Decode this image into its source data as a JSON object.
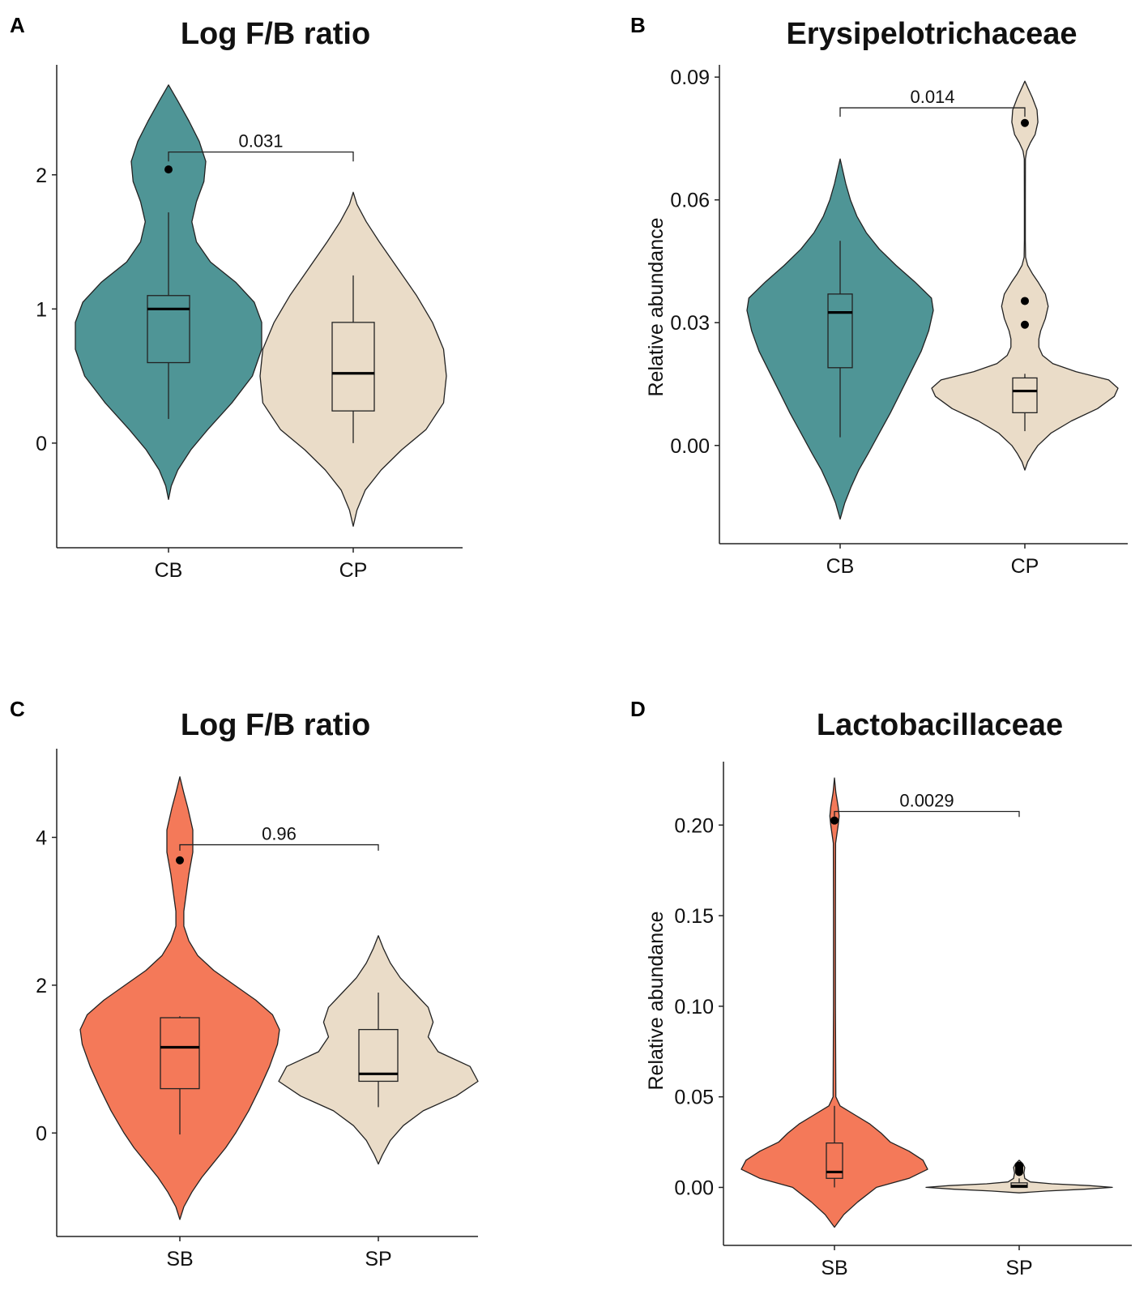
{
  "figure": {
    "colors": {
      "teal": "#4f9596",
      "beige": "#eadcc8",
      "coral": "#f47959",
      "stroke": "#222222"
    }
  },
  "chart_data": [
    {
      "panel": "A",
      "type": "violin",
      "title": "Log F/B ratio",
      "xlabel": "",
      "ylabel": "",
      "ylim": [
        -0.78,
        2.82
      ],
      "yticks": [
        0,
        1,
        2
      ],
      "ytick_labels": [
        "0",
        "1",
        "2"
      ],
      "categories": [
        "CB",
        "CP"
      ],
      "groups": [
        {
          "name": "CB",
          "color": "#4f9596",
          "violin": [
            [
              -0.42,
              0
            ],
            [
              -0.32,
              0.03
            ],
            [
              -0.2,
              0.1
            ],
            [
              -0.05,
              0.24
            ],
            [
              0.1,
              0.42
            ],
            [
              0.3,
              0.68
            ],
            [
              0.5,
              0.9
            ],
            [
              0.7,
              1.0
            ],
            [
              0.9,
              1.0
            ],
            [
              1.05,
              0.92
            ],
            [
              1.2,
              0.72
            ],
            [
              1.35,
              0.45
            ],
            [
              1.5,
              0.3
            ],
            [
              1.65,
              0.25
            ],
            [
              1.8,
              0.3
            ],
            [
              1.95,
              0.38
            ],
            [
              2.1,
              0.4
            ],
            [
              2.25,
              0.33
            ],
            [
              2.4,
              0.22
            ],
            [
              2.55,
              0.1
            ],
            [
              2.67,
              0
            ]
          ],
          "box": {
            "q1": 0.6,
            "median": 1.0,
            "q3": 1.1,
            "whisker_low": 0.18,
            "whisker_high": 1.72
          },
          "outliers": [
            2.04
          ]
        },
        {
          "name": "CP",
          "color": "#eadcc8",
          "violin": [
            [
              -0.62,
              0
            ],
            [
              -0.5,
              0.04
            ],
            [
              -0.35,
              0.13
            ],
            [
              -0.2,
              0.3
            ],
            [
              -0.05,
              0.52
            ],
            [
              0.1,
              0.78
            ],
            [
              0.3,
              0.97
            ],
            [
              0.5,
              1.0
            ],
            [
              0.7,
              0.97
            ],
            [
              0.9,
              0.85
            ],
            [
              1.1,
              0.68
            ],
            [
              1.3,
              0.48
            ],
            [
              1.5,
              0.28
            ],
            [
              1.65,
              0.14
            ],
            [
              1.78,
              0.04
            ],
            [
              1.87,
              0
            ]
          ],
          "box": {
            "q1": 0.24,
            "median": 0.52,
            "q3": 0.9,
            "whisker_low": 0.0,
            "whisker_high": 1.25
          },
          "outliers": []
        }
      ],
      "annotation": {
        "text": "0.031",
        "y": 2.17,
        "y_end_left": 2.1,
        "y_end_right": 2.1
      }
    },
    {
      "panel": "B",
      "type": "violin",
      "title": "Erysipelotrichaceae",
      "xlabel": "",
      "ylabel": "Relative abundance",
      "ylim": [
        -0.024,
        0.093
      ],
      "yticks": [
        0.0,
        0.03,
        0.06,
        0.09
      ],
      "ytick_labels": [
        "0.00",
        "0.03",
        "0.06",
        "0.09"
      ],
      "categories": [
        "CB",
        "CP"
      ],
      "groups": [
        {
          "name": "CB",
          "color": "#4f9596",
          "violin": [
            [
              -0.018,
              0
            ],
            [
              -0.014,
              0.05
            ],
            [
              -0.01,
              0.12
            ],
            [
              -0.006,
              0.2
            ],
            [
              -0.002,
              0.3
            ],
            [
              0.003,
              0.42
            ],
            [
              0.008,
              0.54
            ],
            [
              0.013,
              0.65
            ],
            [
              0.018,
              0.76
            ],
            [
              0.023,
              0.87
            ],
            [
              0.028,
              0.95
            ],
            [
              0.033,
              1.0
            ],
            [
              0.036,
              0.98
            ],
            [
              0.04,
              0.8
            ],
            [
              0.044,
              0.6
            ],
            [
              0.048,
              0.42
            ],
            [
              0.052,
              0.28
            ],
            [
              0.056,
              0.18
            ],
            [
              0.06,
              0.11
            ],
            [
              0.064,
              0.06
            ],
            [
              0.068,
              0.02
            ],
            [
              0.07,
              0
            ]
          ],
          "box": {
            "q1": 0.019,
            "median": 0.0325,
            "q3": 0.037,
            "whisker_low": 0.002,
            "whisker_high": 0.05
          },
          "outliers": []
        },
        {
          "name": "CP",
          "color": "#eadcc8",
          "violin": [
            [
              -0.006,
              0
            ],
            [
              -0.004,
              0.03
            ],
            [
              -0.002,
              0.08
            ],
            [
              0.0,
              0.14
            ],
            [
              0.003,
              0.28
            ],
            [
              0.006,
              0.5
            ],
            [
              0.009,
              0.78
            ],
            [
              0.012,
              0.96
            ],
            [
              0.014,
              1.0
            ],
            [
              0.016,
              0.9
            ],
            [
              0.018,
              0.55
            ],
            [
              0.02,
              0.3
            ],
            [
              0.022,
              0.19
            ],
            [
              0.024,
              0.15
            ],
            [
              0.026,
              0.15
            ],
            [
              0.028,
              0.17
            ],
            [
              0.031,
              0.22
            ],
            [
              0.034,
              0.25
            ],
            [
              0.037,
              0.22
            ],
            [
              0.04,
              0.14
            ],
            [
              0.042,
              0.08
            ],
            [
              0.044,
              0.03
            ],
            [
              0.046,
              0.008
            ],
            [
              0.05,
              0.005
            ],
            [
              0.06,
              0.005
            ],
            [
              0.07,
              0.006
            ],
            [
              0.072,
              0.02
            ],
            [
              0.074,
              0.06
            ],
            [
              0.076,
              0.11
            ],
            [
              0.079,
              0.14
            ],
            [
              0.082,
              0.13
            ],
            [
              0.085,
              0.08
            ],
            [
              0.087,
              0.04
            ],
            [
              0.089,
              0
            ]
          ],
          "box": {
            "q1": 0.008,
            "median": 0.0133,
            "q3": 0.0165,
            "whisker_low": 0.0035,
            "whisker_high": 0.0175
          },
          "outliers": [
            0.0295,
            0.0353,
            0.0788
          ]
        }
      ],
      "annotation": {
        "text": "0.014",
        "y": 0.0825,
        "y_end_left": 0.0803,
        "y_end_right": 0.0803
      }
    },
    {
      "panel": "C",
      "type": "violin",
      "title": "Log F/B ratio",
      "xlabel": "",
      "ylabel": "",
      "ylim": [
        -1.4,
        5.2
      ],
      "yticks": [
        0,
        2,
        4
      ],
      "ytick_labels": [
        "0",
        "2",
        "4"
      ],
      "categories": [
        "SB",
        "SP"
      ],
      "groups": [
        {
          "name": "SB",
          "color": "#f47959",
          "violin": [
            [
              -1.17,
              0
            ],
            [
              -1.0,
              0.04
            ],
            [
              -0.8,
              0.12
            ],
            [
              -0.6,
              0.22
            ],
            [
              -0.4,
              0.34
            ],
            [
              -0.2,
              0.46
            ],
            [
              0.0,
              0.56
            ],
            [
              0.3,
              0.69
            ],
            [
              0.6,
              0.8
            ],
            [
              0.9,
              0.9
            ],
            [
              1.2,
              0.98
            ],
            [
              1.4,
              1.0
            ],
            [
              1.6,
              0.93
            ],
            [
              1.8,
              0.76
            ],
            [
              2.0,
              0.55
            ],
            [
              2.2,
              0.34
            ],
            [
              2.4,
              0.18
            ],
            [
              2.6,
              0.09
            ],
            [
              2.8,
              0.04
            ],
            [
              3.0,
              0.04
            ],
            [
              3.2,
              0.06
            ],
            [
              3.5,
              0.09
            ],
            [
              3.8,
              0.13
            ],
            [
              4.1,
              0.13
            ],
            [
              4.4,
              0.08
            ],
            [
              4.6,
              0.04
            ],
            [
              4.82,
              0
            ]
          ],
          "box": {
            "q1": 0.6,
            "median": 1.16,
            "q3": 1.56,
            "whisker_low": -0.02,
            "whisker_high": 1.58
          },
          "outliers": [
            3.69
          ]
        },
        {
          "name": "SP",
          "color": "#eadcc8",
          "violin": [
            [
              -0.42,
              0
            ],
            [
              -0.3,
              0.04
            ],
            [
              -0.1,
              0.12
            ],
            [
              0.1,
              0.25
            ],
            [
              0.3,
              0.45
            ],
            [
              0.5,
              0.78
            ],
            [
              0.7,
              1.0
            ],
            [
              0.9,
              0.92
            ],
            [
              1.1,
              0.6
            ],
            [
              1.3,
              0.5
            ],
            [
              1.5,
              0.55
            ],
            [
              1.7,
              0.5
            ],
            [
              1.9,
              0.36
            ],
            [
              2.1,
              0.22
            ],
            [
              2.3,
              0.12
            ],
            [
              2.5,
              0.05
            ],
            [
              2.67,
              0
            ]
          ],
          "box": {
            "q1": 0.7,
            "median": 0.8,
            "q3": 1.4,
            "whisker_low": 0.35,
            "whisker_high": 1.9
          },
          "outliers": []
        }
      ],
      "annotation": {
        "text": "0.96",
        "y": 3.9,
        "y_end_left": 3.82,
        "y_end_right": 3.82
      }
    },
    {
      "panel": "D",
      "type": "violin",
      "title": "Lactobacillaceae",
      "xlabel": "",
      "ylabel": "Relative abundance",
      "ylim": [
        -0.032,
        0.235
      ],
      "yticks": [
        0.0,
        0.05,
        0.1,
        0.15,
        0.2
      ],
      "ytick_labels": [
        "0.00",
        "0.05",
        "0.10",
        "0.15",
        "0.20"
      ],
      "categories": [
        "SB",
        "SP"
      ],
      "groups": [
        {
          "name": "SB",
          "color": "#f47959",
          "violin": [
            [
              -0.022,
              0
            ],
            [
              -0.015,
              0.1
            ],
            [
              -0.008,
              0.25
            ],
            [
              0.0,
              0.45
            ],
            [
              0.005,
              0.8
            ],
            [
              0.01,
              1.0
            ],
            [
              0.015,
              0.95
            ],
            [
              0.02,
              0.8
            ],
            [
              0.025,
              0.6
            ],
            [
              0.03,
              0.5
            ],
            [
              0.035,
              0.38
            ],
            [
              0.04,
              0.22
            ],
            [
              0.045,
              0.06
            ],
            [
              0.05,
              0.015
            ],
            [
              0.1,
              0.01
            ],
            [
              0.15,
              0.01
            ],
            [
              0.19,
              0.012
            ],
            [
              0.2,
              0.04
            ],
            [
              0.205,
              0.05
            ],
            [
              0.21,
              0.04
            ],
            [
              0.218,
              0.015
            ],
            [
              0.226,
              0
            ]
          ],
          "box": {
            "q1": 0.005,
            "median": 0.0085,
            "q3": 0.0245,
            "whisker_low": 0.0,
            "whisker_high": 0.045
          },
          "outliers": [
            0.2025
          ]
        },
        {
          "name": "SP",
          "color": "#eadcc8",
          "violin": [
            [
              -0.003,
              0
            ],
            [
              -0.002,
              0.3
            ],
            [
              -0.001,
              0.7
            ],
            [
              0.0,
              1.0
            ],
            [
              0.001,
              0.75
            ],
            [
              0.002,
              0.35
            ],
            [
              0.003,
              0.12
            ],
            [
              0.005,
              0.06
            ],
            [
              0.008,
              0.05
            ],
            [
              0.011,
              0.06
            ],
            [
              0.013,
              0.04
            ],
            [
              0.015,
              0
            ]
          ],
          "box": {
            "q1": 0.0,
            "median": 0.0007,
            "q3": 0.0025,
            "whisker_low": 0.0,
            "whisker_high": 0.005
          },
          "outliers": [
            0.0085,
            0.0095,
            0.0105,
            0.0115,
            0.012
          ]
        }
      ],
      "annotation": {
        "text": "0.0029",
        "y": 0.2075,
        "y_end_left": 0.2045,
        "y_end_right": 0.2045
      }
    }
  ]
}
